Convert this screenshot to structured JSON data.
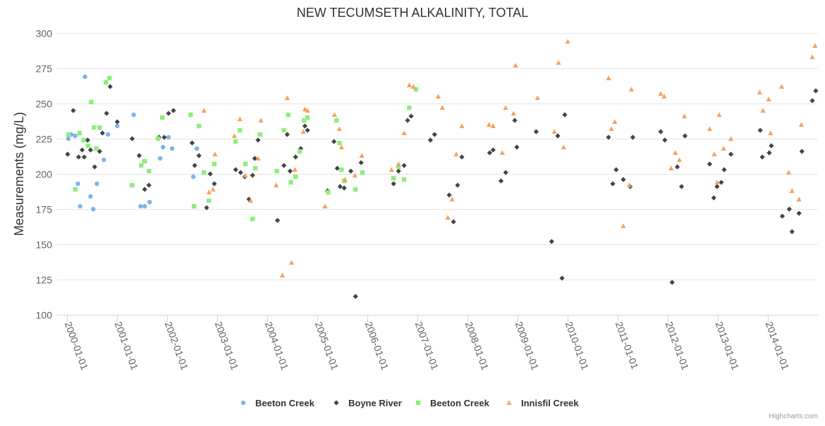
{
  "chart_data": {
    "type": "scatter",
    "title": "NEW TECUMSETH ALKALINITY, TOTAL",
    "ylabel": "Measurements (mg/L)",
    "xlabel": "",
    "ylim": [
      100,
      300
    ],
    "yticks": [
      100,
      125,
      150,
      175,
      200,
      225,
      250,
      275,
      300
    ],
    "xlim": [
      "1999-10-15",
      "2014-12-31"
    ],
    "xticks": [
      "2000-01-01",
      "2001-01-01",
      "2002-01-01",
      "2003-01-01",
      "2004-01-01",
      "2005-01-01",
      "2006-01-01",
      "2007-01-01",
      "2008-01-01",
      "2009-01-01",
      "2010-01-01",
      "2011-01-01",
      "2012-01-01",
      "2013-01-01",
      "2014-01-01"
    ],
    "grid": true,
    "legend": "bottom-center",
    "credits": "Highcharts.com",
    "series": [
      {
        "name": "Beeton Creek",
        "marker": "circle",
        "color": "#7cb5ec",
        "points": [
          [
            "2000-01-10",
            225
          ],
          [
            "2000-02-01",
            228
          ],
          [
            "2000-03-01",
            227
          ],
          [
            "2000-03-20",
            193
          ],
          [
            "2000-04-05",
            177
          ],
          [
            "2000-05-10",
            269
          ],
          [
            "2000-06-20",
            184
          ],
          [
            "2000-07-10",
            175
          ],
          [
            "2000-08-05",
            193
          ],
          [
            "2000-09-25",
            210
          ],
          [
            "2000-10-25",
            228
          ],
          [
            "2001-01-01",
            234
          ],
          [
            "2001-05-01",
            242
          ],
          [
            "2001-06-20",
            177
          ],
          [
            "2001-07-20",
            177
          ],
          [
            "2001-08-25",
            180
          ],
          [
            "2001-11-10",
            211
          ],
          [
            "2001-12-01",
            219
          ],
          [
            "2002-01-10",
            226
          ],
          [
            "2002-02-05",
            218
          ],
          [
            "2002-07-10",
            198
          ],
          [
            "2002-08-05",
            218
          ]
        ]
      },
      {
        "name": "Boyne River",
        "marker": "diamond",
        "color": "#434348",
        "points": [
          [
            "2000-01-05",
            214
          ],
          [
            "2000-02-15",
            245
          ],
          [
            "2000-03-25",
            212
          ],
          [
            "2000-04-20",
            217
          ],
          [
            "2000-05-05",
            212
          ],
          [
            "2000-05-30",
            224
          ],
          [
            "2000-06-20",
            217
          ],
          [
            "2000-07-20",
            205
          ],
          [
            "2000-08-25",
            216
          ],
          [
            "2000-09-15",
            229
          ],
          [
            "2000-10-15",
            243
          ],
          [
            "2000-11-10",
            262
          ],
          [
            "2001-01-01",
            237
          ],
          [
            "2001-04-20",
            225
          ],
          [
            "2001-06-10",
            213
          ],
          [
            "2001-07-20",
            189
          ],
          [
            "2001-08-20",
            192
          ],
          [
            "2001-11-01",
            226
          ],
          [
            "2001-12-10",
            226
          ],
          [
            "2002-01-10",
            243
          ],
          [
            "2002-02-15",
            245
          ],
          [
            "2002-07-01",
            222
          ],
          [
            "2002-07-20",
            206
          ],
          [
            "2002-08-20",
            213
          ],
          [
            "2002-10-15",
            176
          ],
          [
            "2002-11-10",
            200
          ],
          [
            "2002-12-10",
            193
          ],
          [
            "2003-05-15",
            203
          ],
          [
            "2003-06-20",
            201
          ],
          [
            "2003-07-20",
            198
          ],
          [
            "2003-08-20",
            182
          ],
          [
            "2003-09-15",
            199
          ],
          [
            "2003-10-01",
            211
          ],
          [
            "2003-10-25",
            224
          ],
          [
            "2004-03-15",
            167
          ],
          [
            "2004-05-01",
            206
          ],
          [
            "2004-05-25",
            228
          ],
          [
            "2004-06-15",
            202
          ],
          [
            "2004-07-25",
            212
          ],
          [
            "2004-09-01",
            218
          ],
          [
            "2004-10-01",
            234
          ],
          [
            "2004-10-20",
            231
          ],
          [
            "2005-03-15",
            188
          ],
          [
            "2005-05-01",
            223
          ],
          [
            "2005-05-25",
            204
          ],
          [
            "2005-06-15",
            191
          ],
          [
            "2005-07-15",
            190
          ],
          [
            "2005-09-01",
            202
          ],
          [
            "2005-10-05",
            113
          ],
          [
            "2005-11-15",
            208
          ],
          [
            "2006-07-10",
            193
          ],
          [
            "2006-08-15",
            202
          ],
          [
            "2006-09-25",
            206
          ],
          [
            "2006-10-20",
            238
          ],
          [
            "2006-11-15",
            241
          ],
          [
            "2007-04-05",
            224
          ],
          [
            "2007-05-05",
            228
          ],
          [
            "2007-08-20",
            185
          ],
          [
            "2007-09-20",
            166
          ],
          [
            "2007-10-20",
            192
          ],
          [
            "2007-11-20",
            212
          ],
          [
            "2008-06-10",
            215
          ],
          [
            "2008-07-05",
            217
          ],
          [
            "2008-09-01",
            195
          ],
          [
            "2008-10-05",
            201
          ],
          [
            "2008-12-10",
            238
          ],
          [
            "2008-12-25",
            219
          ],
          [
            "2009-05-15",
            230
          ],
          [
            "2009-09-05",
            152
          ],
          [
            "2009-10-20",
            227
          ],
          [
            "2009-11-20",
            126
          ],
          [
            "2009-12-10",
            242
          ],
          [
            "2010-10-25",
            226
          ],
          [
            "2010-11-25",
            193
          ],
          [
            "2010-12-20",
            203
          ],
          [
            "2011-02-10",
            196
          ],
          [
            "2011-04-01",
            191
          ],
          [
            "2011-04-20",
            226
          ],
          [
            "2011-11-10",
            230
          ],
          [
            "2011-12-10",
            224
          ],
          [
            "2012-02-01",
            123
          ],
          [
            "2012-03-10",
            205
          ],
          [
            "2012-04-10",
            191
          ],
          [
            "2012-05-05",
            227
          ],
          [
            "2012-11-01",
            207
          ],
          [
            "2012-12-01",
            183
          ],
          [
            "2012-12-25",
            191
          ],
          [
            "2013-01-25",
            194
          ],
          [
            "2013-02-15",
            203
          ],
          [
            "2013-04-05",
            214
          ],
          [
            "2013-11-05",
            231
          ],
          [
            "2013-11-20",
            212
          ],
          [
            "2014-01-10",
            215
          ],
          [
            "2014-01-25",
            220
          ],
          [
            "2014-04-15",
            170
          ],
          [
            "2014-06-05",
            175
          ],
          [
            "2014-06-25",
            159
          ],
          [
            "2014-08-15",
            172
          ],
          [
            "2014-09-05",
            216
          ],
          [
            "2014-11-20",
            252
          ],
          [
            "2014-12-15",
            259
          ]
        ]
      },
      {
        "name": "Beeton Creek",
        "marker": "square",
        "color": "#90ed7d",
        "points": [
          [
            "2000-01-10",
            228
          ],
          [
            "2000-03-01",
            189
          ],
          [
            "2000-04-01",
            229
          ],
          [
            "2000-05-01",
            224
          ],
          [
            "2000-06-01",
            220
          ],
          [
            "2000-06-25",
            251
          ],
          [
            "2000-07-15",
            233
          ],
          [
            "2000-08-01",
            218
          ],
          [
            "2000-08-25",
            233
          ],
          [
            "2000-10-10",
            265
          ],
          [
            "2000-11-05",
            268
          ],
          [
            "2001-04-20",
            192
          ],
          [
            "2001-06-25",
            206
          ],
          [
            "2001-07-20",
            209
          ],
          [
            "2001-08-20",
            202
          ],
          [
            "2001-10-25",
            225
          ],
          [
            "2001-11-25",
            240
          ],
          [
            "2002-06-20",
            242
          ],
          [
            "2002-07-15",
            177
          ],
          [
            "2002-08-20",
            234
          ],
          [
            "2002-09-25",
            201
          ],
          [
            "2002-11-01",
            181
          ],
          [
            "2002-12-10",
            207
          ],
          [
            "2003-05-15",
            223
          ],
          [
            "2003-06-15",
            231
          ],
          [
            "2003-07-25",
            207
          ],
          [
            "2003-09-15",
            168
          ],
          [
            "2003-10-05",
            204
          ],
          [
            "2003-11-10",
            228
          ],
          [
            "2004-03-10",
            202
          ],
          [
            "2004-05-01",
            231
          ],
          [
            "2004-06-01",
            242
          ],
          [
            "2004-06-20",
            194
          ],
          [
            "2004-07-25",
            198
          ],
          [
            "2004-08-25",
            216
          ],
          [
            "2004-09-25",
            238
          ],
          [
            "2004-10-20",
            240
          ],
          [
            "2005-03-20",
            187
          ],
          [
            "2005-05-20",
            238
          ],
          [
            "2005-06-10",
            222
          ],
          [
            "2005-06-25",
            203
          ],
          [
            "2005-07-15",
            195
          ],
          [
            "2005-10-05",
            189
          ],
          [
            "2005-11-25",
            201
          ],
          [
            "2006-07-10",
            197
          ],
          [
            "2006-08-15",
            205
          ],
          [
            "2006-09-25",
            196
          ],
          [
            "2006-11-01",
            247
          ],
          [
            "2006-12-20",
            260
          ]
        ]
      },
      {
        "name": "Innisfil Creek",
        "marker": "triangle",
        "color": "#f7a35c",
        "points": [
          [
            "2002-09-25",
            245
          ],
          [
            "2002-11-01",
            187
          ],
          [
            "2002-12-01",
            189
          ],
          [
            "2002-12-15",
            214
          ],
          [
            "2003-05-05",
            227
          ],
          [
            "2003-06-15",
            239
          ],
          [
            "2003-07-25",
            199
          ],
          [
            "2003-09-01",
            181
          ],
          [
            "2003-10-25",
            211
          ],
          [
            "2003-11-15",
            238
          ],
          [
            "2004-03-05",
            192
          ],
          [
            "2004-04-20",
            128
          ],
          [
            "2004-05-25",
            254
          ],
          [
            "2004-06-25",
            137
          ],
          [
            "2004-07-20",
            203
          ],
          [
            "2004-09-20",
            230
          ],
          [
            "2004-10-01",
            246
          ],
          [
            "2004-10-20",
            245
          ],
          [
            "2005-02-25",
            177
          ],
          [
            "2005-05-05",
            242
          ],
          [
            "2005-06-10",
            232
          ],
          [
            "2005-06-25",
            219
          ],
          [
            "2005-07-20",
            196
          ],
          [
            "2005-10-01",
            199
          ],
          [
            "2005-11-20",
            213
          ],
          [
            "2006-06-25",
            203
          ],
          [
            "2006-08-15",
            207
          ],
          [
            "2006-09-25",
            229
          ],
          [
            "2006-11-01",
            263
          ],
          [
            "2006-12-01",
            262
          ],
          [
            "2007-06-01",
            255
          ],
          [
            "2007-07-01",
            247
          ],
          [
            "2007-08-10",
            169
          ],
          [
            "2007-09-10",
            182
          ],
          [
            "2007-10-10",
            214
          ],
          [
            "2007-11-20",
            234
          ],
          [
            "2008-06-05",
            235
          ],
          [
            "2008-07-05",
            234
          ],
          [
            "2008-09-10",
            215
          ],
          [
            "2008-10-05",
            247
          ],
          [
            "2008-12-01",
            243
          ],
          [
            "2008-12-15",
            277
          ],
          [
            "2009-05-25",
            254
          ],
          [
            "2009-09-25",
            230
          ],
          [
            "2009-10-25",
            279
          ],
          [
            "2009-12-01",
            219
          ],
          [
            "2010-01-01",
            294
          ],
          [
            "2010-10-25",
            268
          ],
          [
            "2010-11-15",
            232
          ],
          [
            "2010-12-10",
            237
          ],
          [
            "2011-02-10",
            163
          ],
          [
            "2011-03-25",
            192
          ],
          [
            "2011-04-10",
            260
          ],
          [
            "2011-11-10",
            257
          ],
          [
            "2011-12-05",
            255
          ],
          [
            "2012-01-25",
            204
          ],
          [
            "2012-02-25",
            215
          ],
          [
            "2012-03-25",
            210
          ],
          [
            "2012-05-01",
            241
          ],
          [
            "2012-11-01",
            232
          ],
          [
            "2012-12-05",
            214
          ],
          [
            "2012-12-25",
            194
          ],
          [
            "2013-01-10",
            242
          ],
          [
            "2013-02-10",
            218
          ],
          [
            "2013-04-05",
            225
          ],
          [
            "2013-11-01",
            258
          ],
          [
            "2013-11-25",
            245
          ],
          [
            "2014-01-05",
            253
          ],
          [
            "2014-01-20",
            229
          ],
          [
            "2014-04-10",
            262
          ],
          [
            "2014-06-01",
            201
          ],
          [
            "2014-06-25",
            188
          ],
          [
            "2014-08-15",
            182
          ],
          [
            "2014-09-01",
            235
          ],
          [
            "2014-11-20",
            283
          ],
          [
            "2014-12-10",
            291
          ]
        ]
      }
    ]
  }
}
